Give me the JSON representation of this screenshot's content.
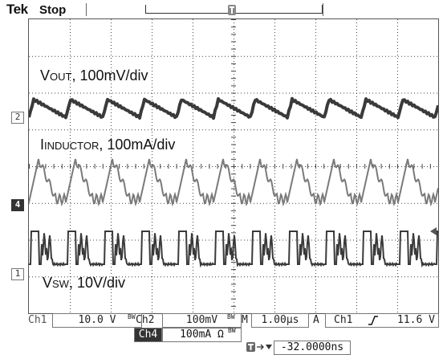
{
  "header": {
    "brand": "Tek",
    "run_state": "Stop"
  },
  "channels": {
    "ch2_marker": "2",
    "ch4_marker": "4",
    "ch1_marker": "1"
  },
  "trace_labels": {
    "vout_main": "V",
    "vout_sub": "OUT",
    "vout_scale": ", 100mV/div",
    "inductor_main": "I",
    "inductor_sub": "INDUCTOR",
    "inductor_scale": ", 100mA/div",
    "vsw_main": "V",
    "vsw_sub": "SW",
    "vsw_scale": ", 10V/div"
  },
  "status": {
    "ch1_label": "Ch1",
    "ch1_scale": "10.0 V",
    "ch1_bw": "BW",
    "ch2_label": "Ch2",
    "ch2_scale": "100mV",
    "ch2_bw": "BW",
    "ch4_label": "Ch4",
    "ch4_scale": "100mA Ω",
    "ch4_bw": "BW",
    "timebase_label": "M",
    "timebase": "1.00µs",
    "acq_mode": "A",
    "trigger_source": "Ch1",
    "trigger_slope_icon": "rising-edge-icon",
    "trigger_level": "11.6 V",
    "trigger_position": "-32.0000ns"
  },
  "colors": {
    "trace": "#3a3a3a",
    "grid": "#444444",
    "border": "#555555"
  }
}
